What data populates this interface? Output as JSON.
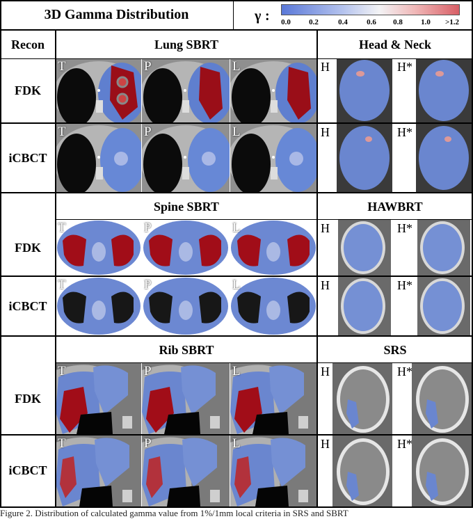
{
  "figure": {
    "title": "3D Gamma Distribution",
    "colorbar": {
      "symbol": "γ",
      "ticks": [
        "0.0",
        "0.2",
        "0.4",
        "0.6",
        "0.8",
        "1.0",
        ">1.2"
      ],
      "colors": {
        "low": "#5a78d8",
        "mid": "#f3f3f5",
        "high": "#d85f66"
      }
    },
    "recon_header": "Recon",
    "panels": [
      {
        "left": "Lung SBRT",
        "right": "Head & Neck"
      },
      {
        "left": "Spine SBRT",
        "right": "HAWBRT"
      },
      {
        "left": "Rib SBRT",
        "right": "SRS"
      }
    ],
    "row_labels": [
      "FDK",
      "iCBCT"
    ],
    "ct_labels": [
      "T",
      "P",
      "L"
    ],
    "brain_labels": [
      "H",
      "H*"
    ],
    "caption": "Figure 2. Distribution of calculated gamma value from 1%/1mm local criteria in SRS and SBRT"
  }
}
